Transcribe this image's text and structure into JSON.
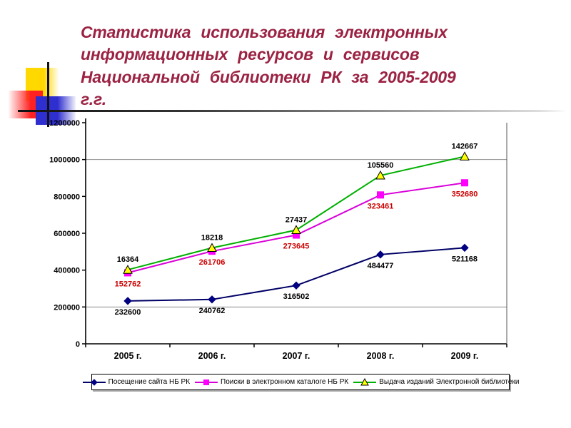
{
  "slide": {
    "title": {
      "lines": [
        "Статистика  использования  электронных",
        "информационных  ресурсов  и  сервисов",
        "Национальной  библиотеки  РК  за  2005-2009 г.г."
      ],
      "color": "#9B2243"
    },
    "decoration": {
      "yellow": "#FFD800",
      "red": "#FF2020",
      "blue": "#2F2FD0"
    }
  },
  "chart_data": {
    "type": "line",
    "stacked": true,
    "title": "",
    "categories": [
      "2005 г.",
      "2006 г.",
      "2007 г.",
      "2008 г.",
      "2009 г."
    ],
    "series": [
      {
        "name": "Посещение сайта НБ РК",
        "values": [
          232600,
          240762,
          316502,
          484477,
          521168
        ],
        "marker": "diamond",
        "color": "#000080",
        "line_color": "#000066",
        "label_color": "#000000",
        "label_position": "below"
      },
      {
        "name": "Поиски в электронном каталоге НБ РК",
        "values": [
          152762,
          261706,
          273645,
          323461,
          352680
        ],
        "marker": "square",
        "color": "#FF00FF",
        "line_color": "#D900D9",
        "label_color": "#CC0000",
        "label_position": "below"
      },
      {
        "name": "Выдача изданий Электронной библиотеки",
        "values": [
          16364,
          18218,
          27437,
          105560,
          142667
        ],
        "marker": "triangle",
        "color": "#FFFF00",
        "line_color": "#00B000",
        "label_color": "#000000",
        "label_position": "above"
      }
    ],
    "y_axis": {
      "min": 0,
      "max": 1200000,
      "step": 200000,
      "tick_labels": [
        "0",
        "200000",
        "400000",
        "600000",
        "800000",
        "1000000",
        "1200000"
      ]
    },
    "gridlines_at": [
      200000,
      1000000
    ],
    "legend_position": "bottom",
    "grid": "partial-horizontal"
  }
}
